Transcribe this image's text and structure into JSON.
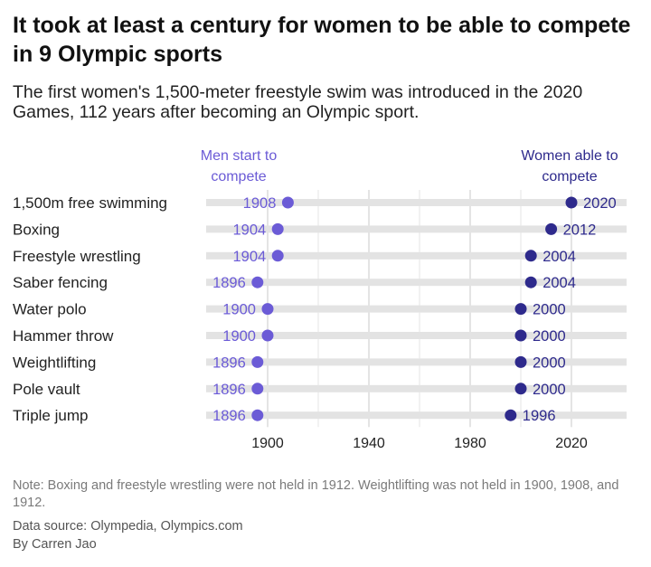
{
  "title": "It took at least a century for women to be able to compete in 9 Olympic sports",
  "subtitle": "The first women's 1,500-meter freestyle swim was introduced in the 2020 Games, 112 years after becoming an Olympic sport.",
  "legend": {
    "men": "Men start to compete",
    "women": "Women able to compete"
  },
  "colors": {
    "men": "#6b5bd6",
    "women": "#2e2a8c",
    "bar": "#e3e3e3",
    "grid": "#c8c8c8"
  },
  "note": "Note: Boxing and freestyle wrestling were not held in 1912. Weightlifting was not held in 1900, 1908, and 1912.",
  "source": "Data source: Olympedia, Olympics.com",
  "byline": "By Carren Jao",
  "chart_data": {
    "type": "dumbbell",
    "categories": [
      "1,500m free swimming",
      "Boxing",
      "Freestyle wrestling",
      "Saber fencing",
      "Water polo",
      "Hammer throw",
      "Weightlifting",
      "Pole vault",
      "Triple jump"
    ],
    "series": [
      {
        "name": "Men start to compete",
        "values": [
          1908,
          1904,
          1904,
          1896,
          1900,
          1900,
          1896,
          1896,
          1896
        ]
      },
      {
        "name": "Women able to compete",
        "values": [
          2020,
          2012,
          2004,
          2004,
          2000,
          2000,
          2000,
          2000,
          1996
        ]
      }
    ],
    "x_ticks": [
      1900,
      1940,
      1980,
      2020
    ],
    "xlim": [
      1882,
      2040
    ],
    "grid": true
  }
}
